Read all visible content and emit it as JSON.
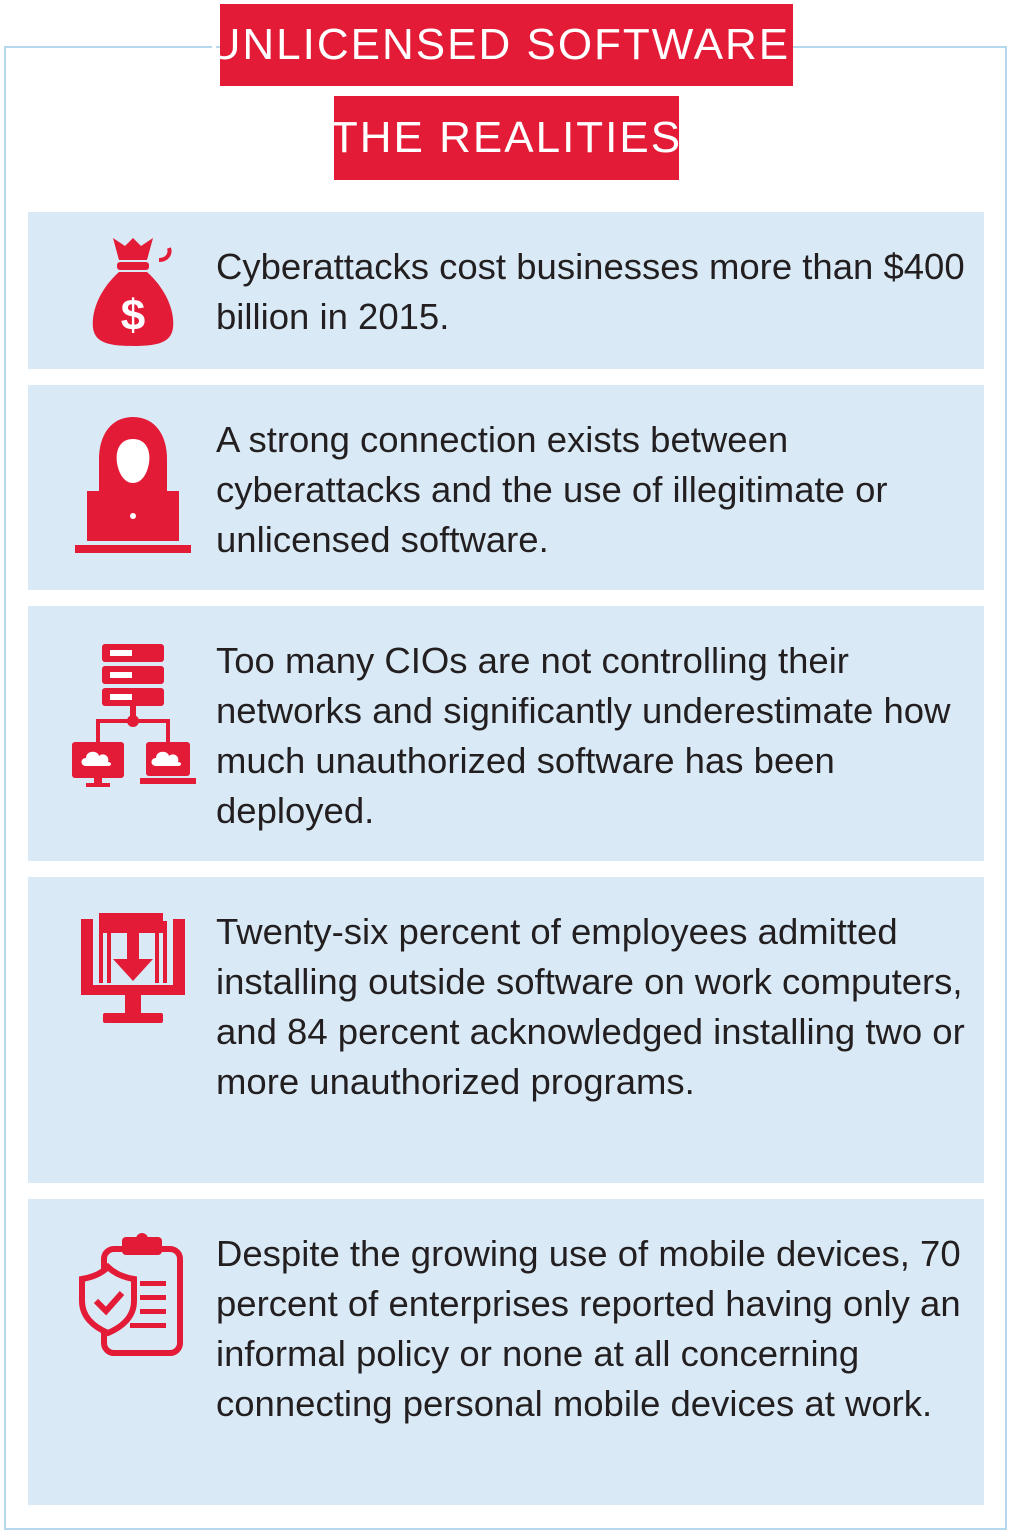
{
  "header": {
    "title_line1": "UNLICENSED SOFTWARE:",
    "title_line2": "THE REALITIES"
  },
  "colors": {
    "accent_red": "#e31b37",
    "card_bg": "#d9eaf6",
    "frame_border": "#b5d8ec",
    "text": "#231f20"
  },
  "facts": [
    {
      "icon": "money-bag-icon",
      "text": "Cyberattacks cost businesses more than $400 billion in 2015."
    },
    {
      "icon": "hacker-laptop-icon",
      "text": "A strong connection exists between cyberattacks and the use of illegitimate or unlicensed software."
    },
    {
      "icon": "network-server-icon",
      "text": "Too many CIOs are not controlling their networks and significantly underestimate how much unauthorized software has been deployed."
    },
    {
      "icon": "download-monitor-icon",
      "text": "Twenty-six percent of employees admitted installing outside software on work computers, and 84 percent acknowledged installing two or more unauthorized programs."
    },
    {
      "icon": "shield-clipboard-icon",
      "text": "Despite the growing use of mobile devices, 70 percent of enterprises reported having only an informal policy or none at all concerning connecting personal mobile devices at work."
    }
  ]
}
